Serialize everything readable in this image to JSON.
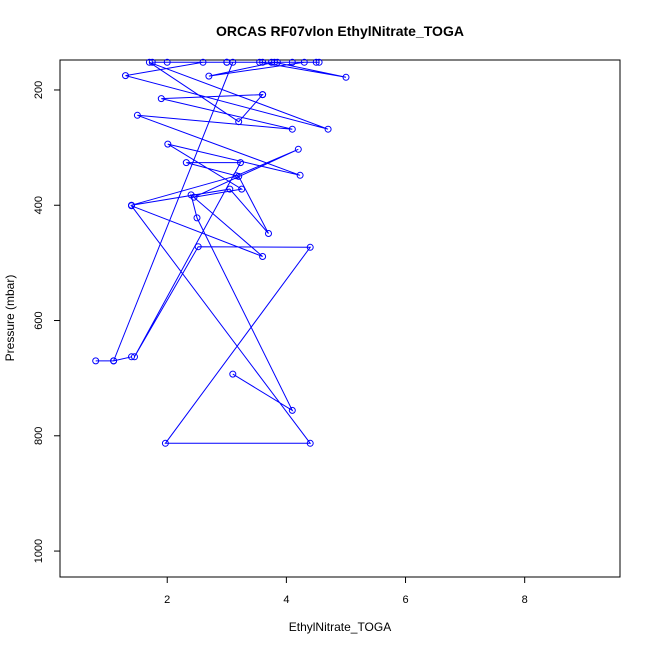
{
  "chart_data": {
    "type": "line",
    "title": "ORCAS RF07vlon EthylNitrate_TOGA",
    "xlabel": "EthylNitrate_TOGA",
    "ylabel": "Pressure (mbar)",
    "xlim": [
      0.2,
      9.6
    ],
    "ylim": [
      1045,
      148
    ],
    "y_reversed": true,
    "x_ticks": [
      2,
      4,
      6,
      8
    ],
    "x_tick_labels": [
      "2",
      "4",
      "6",
      "8"
    ],
    "y_ticks": [
      200,
      400,
      600,
      800,
      1000
    ],
    "y_tick_labels": [
      "200",
      "400",
      "600",
      "800",
      "1000"
    ],
    "grid": false,
    "series": [
      {
        "name": "",
        "color": "#0000ff",
        "marker": "open-circle",
        "x": [
          3.1,
          4.1,
          2.5,
          2.4,
          3.6,
          1.4,
          4.4,
          1.97,
          4.4,
          2.52,
          1.45,
          3.23,
          2.32,
          3.2,
          3.7,
          3.05,
          1.4,
          3.16,
          4.2,
          2.45,
          3.25,
          2.01,
          4.23,
          1.5,
          4.1,
          1.9,
          3.6,
          3.6,
          3.2,
          1.7,
          4.7,
          1.3,
          2.6,
          4.3,
          2.7,
          3.8,
          5.0,
          3.55,
          4.55,
          3.0,
          1.75,
          4.1,
          3.75,
          3.0,
          2.0,
          3.85,
          3.6,
          4.5,
          3.1,
          1.1,
          0.8,
          1.1,
          1.4
        ],
        "y": [
          693,
          756,
          422,
          382,
          489,
          401,
          813,
          813,
          473,
          472,
          663,
          326,
          326,
          350,
          449,
          372,
          400,
          349,
          303,
          386,
          372,
          294,
          348,
          244,
          268,
          215,
          208,
          208,
          255,
          152,
          268,
          175,
          152,
          152,
          176,
          152,
          178,
          152,
          152,
          152,
          152,
          152,
          152,
          152,
          152,
          152,
          152,
          152,
          152,
          670,
          670,
          670,
          663
        ]
      }
    ]
  }
}
